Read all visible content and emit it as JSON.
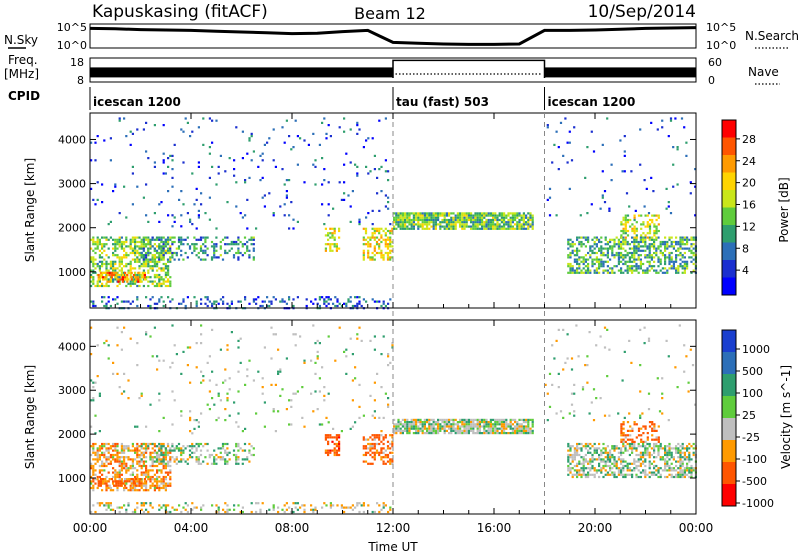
{
  "header": {
    "station": "Kapuskasing (fitACF)",
    "beam": "Beam 12",
    "date": "10/Sep/2014"
  },
  "noise_panel": {
    "left_label": "N.Sky",
    "right_label": "N.Search",
    "left_ticks": [
      "10^5",
      "10^0"
    ],
    "right_ticks": [
      "10^5",
      "10^0"
    ]
  },
  "freq_panel": {
    "left_label_line1": "Freq.",
    "left_label_line2": "[MHz]",
    "left_ticks": [
      "18",
      "8"
    ],
    "right_label": "Nave",
    "right_ticks": [
      "60",
      "0"
    ]
  },
  "cpid_panel": {
    "label": "CPID",
    "modes": [
      {
        "name": "icescan 1200",
        "start_hour": 0,
        "end_hour": 12
      },
      {
        "name": "tau (fast) 503",
        "start_hour": 12,
        "end_hour": 18
      },
      {
        "name": "icescan 1200",
        "start_hour": 18,
        "end_hour": 24
      }
    ]
  },
  "x_axis": {
    "label": "Time UT",
    "ticks": [
      "00:00",
      "04:00",
      "08:00",
      "12:00",
      "16:00",
      "20:00",
      "00:00"
    ],
    "range_hours": [
      0,
      24
    ]
  },
  "power_panel": {
    "ylabel": "Slant Range [km]",
    "colorbar_label": "Power [dB]",
    "colorbar_ticks": [
      "28",
      "24",
      "20",
      "16",
      "12",
      "8",
      "4"
    ],
    "colors": [
      "#ff0000",
      "#ff5500",
      "#ff9a00",
      "#ffd400",
      "#c9e61a",
      "#5fcc3c",
      "#2e9e6e",
      "#2c6fb8",
      "#1a2fcf",
      "#0000ff"
    ]
  },
  "velocity_panel": {
    "ylabel": "Slant Range [km]",
    "colorbar_label": "Velocity [m s^-1]",
    "colorbar_ticks": [
      "1000",
      "500",
      "100",
      "25",
      "-25",
      "-100",
      "-500",
      "-1000"
    ],
    "colors": [
      "#1a3fcf",
      "#2c6fb8",
      "#2e9e6e",
      "#5fcc3c",
      "#bfbfbf",
      "#ff9a00",
      "#ff5500",
      "#ff0000"
    ]
  },
  "chart_data": {
    "type": "heatmap",
    "title": "Kapuskasing (fitACF) Beam 12 10/Sep/2014",
    "xlabel": "Time UT",
    "ylabel": "Slant Range [km]",
    "x_range_hours": [
      0,
      24
    ],
    "y_range_km": [
      180,
      4600
    ],
    "y_ticks": [
      1000,
      2000,
      3000,
      4000
    ],
    "noise_sky_log10": [
      [
        0,
        4.4
      ],
      [
        1,
        4.3
      ],
      [
        2,
        4.1
      ],
      [
        3,
        4.0
      ],
      [
        4,
        3.9
      ],
      [
        5,
        3.7
      ],
      [
        6,
        3.5
      ],
      [
        7,
        3.3
      ],
      [
        8,
        3.1
      ],
      [
        9,
        3.2
      ],
      [
        10,
        3.6
      ],
      [
        11,
        3.9
      ],
      [
        12,
        0.9
      ],
      [
        13,
        0.7
      ],
      [
        14,
        0.5
      ],
      [
        15,
        0.4
      ],
      [
        16,
        0.4
      ],
      [
        17,
        0.5
      ],
      [
        18,
        3.9
      ],
      [
        19,
        3.9
      ],
      [
        20,
        4.0
      ],
      [
        21,
        4.2
      ],
      [
        22,
        4.4
      ],
      [
        23,
        4.5
      ],
      [
        24,
        4.6
      ]
    ],
    "frequency_mhz": [
      {
        "start_hour": 0,
        "end_hour": 12,
        "value": 12
      },
      {
        "start_hour": 12,
        "end_hour": 18,
        "value": 17
      },
      {
        "start_hour": 18,
        "end_hour": 24,
        "value": 12
      }
    ],
    "echo_regions": [
      {
        "t0": 0.0,
        "t1": 3.2,
        "r0": 700,
        "r1": 1800,
        "power_db": 15,
        "velocity": -60,
        "density": 0.55
      },
      {
        "t0": 0.3,
        "t1": 2.2,
        "r0": 800,
        "r1": 1000,
        "power_db": 24,
        "velocity": -200,
        "density": 0.6
      },
      {
        "t0": 2.0,
        "t1": 6.5,
        "r0": 1300,
        "r1": 1800,
        "power_db": 10,
        "velocity": 10,
        "density": 0.35
      },
      {
        "t0": 0.0,
        "t1": 12.0,
        "r0": 200,
        "r1": 450,
        "power_db": 6,
        "velocity": -20,
        "density": 0.25
      },
      {
        "t0": 9.3,
        "t1": 9.9,
        "r0": 1500,
        "r1": 2000,
        "power_db": 18,
        "velocity": -300,
        "density": 0.5
      },
      {
        "t0": 10.8,
        "t1": 12.0,
        "r0": 1300,
        "r1": 2000,
        "power_db": 19,
        "velocity": -150,
        "density": 0.5
      },
      {
        "t0": 12.0,
        "t1": 17.5,
        "r0": 2000,
        "r1": 2350,
        "power_db": 14,
        "velocity": 0,
        "density": 0.85
      },
      {
        "t0": 18.9,
        "t1": 24.0,
        "r0": 1000,
        "r1": 1800,
        "power_db": 12,
        "velocity": 5,
        "density": 0.55
      },
      {
        "t0": 21.0,
        "t1": 22.5,
        "r0": 1800,
        "r1": 2300,
        "power_db": 17,
        "velocity": -150,
        "density": 0.4
      },
      {
        "t0": 0.0,
        "t1": 12.0,
        "r0": 2000,
        "r1": 4500,
        "power_db": 6,
        "velocity": 0,
        "density": 0.03
      },
      {
        "t0": 18.0,
        "t1": 24.0,
        "r0": 2300,
        "r1": 4500,
        "power_db": 6,
        "velocity": 0,
        "density": 0.03
      }
    ]
  }
}
